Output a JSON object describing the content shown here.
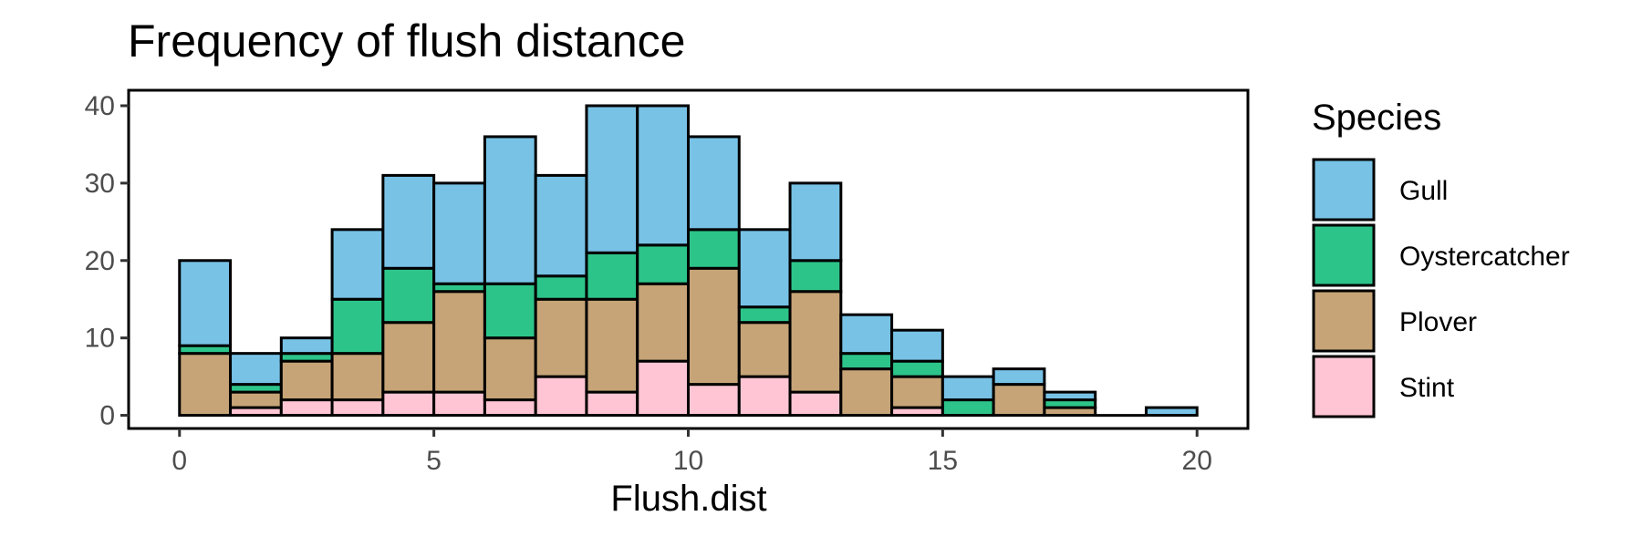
{
  "chart_data": {
    "type": "bar",
    "stacked": true,
    "title": "Frequency of flush distance",
    "xlabel": "Flush.dist",
    "ylabel": "",
    "bin_width": 1,
    "bin_starts": [
      0,
      1,
      2,
      3,
      4,
      5,
      6,
      7,
      8,
      9,
      10,
      11,
      12,
      13,
      14,
      15,
      16,
      17,
      18,
      19
    ],
    "xlim": [
      -1,
      21
    ],
    "ylim": [
      -1.7,
      42
    ],
    "x_ticks": [
      "0",
      "5",
      "10",
      "15",
      "20"
    ],
    "y_ticks": [
      "0",
      "10",
      "20",
      "30",
      "40"
    ],
    "grid": false,
    "legend": {
      "title": "Species",
      "position": "right"
    },
    "series": [
      {
        "name": "Stint",
        "color": "#FFC5D4",
        "values": [
          0,
          1,
          2,
          2,
          3,
          3,
          2,
          5,
          3,
          7,
          4,
          5,
          3,
          0,
          1,
          0,
          0,
          0,
          0,
          0
        ]
      },
      {
        "name": "Plover",
        "color": "#C6A477",
        "values": [
          8,
          2,
          5,
          6,
          9,
          13,
          8,
          10,
          12,
          10,
          15,
          7,
          13,
          6,
          4,
          0,
          4,
          1,
          0,
          0
        ]
      },
      {
        "name": "Oystercatcher",
        "color": "#2DC48A",
        "values": [
          1,
          1,
          1,
          7,
          7,
          1,
          7,
          3,
          6,
          5,
          5,
          2,
          4,
          2,
          2,
          2,
          0,
          1,
          0,
          0
        ]
      },
      {
        "name": "Gull",
        "color": "#78C2E6",
        "values": [
          11,
          4,
          2,
          9,
          12,
          13,
          19,
          13,
          19,
          18,
          12,
          10,
          10,
          5,
          4,
          3,
          2,
          1,
          0,
          1
        ]
      }
    ]
  }
}
